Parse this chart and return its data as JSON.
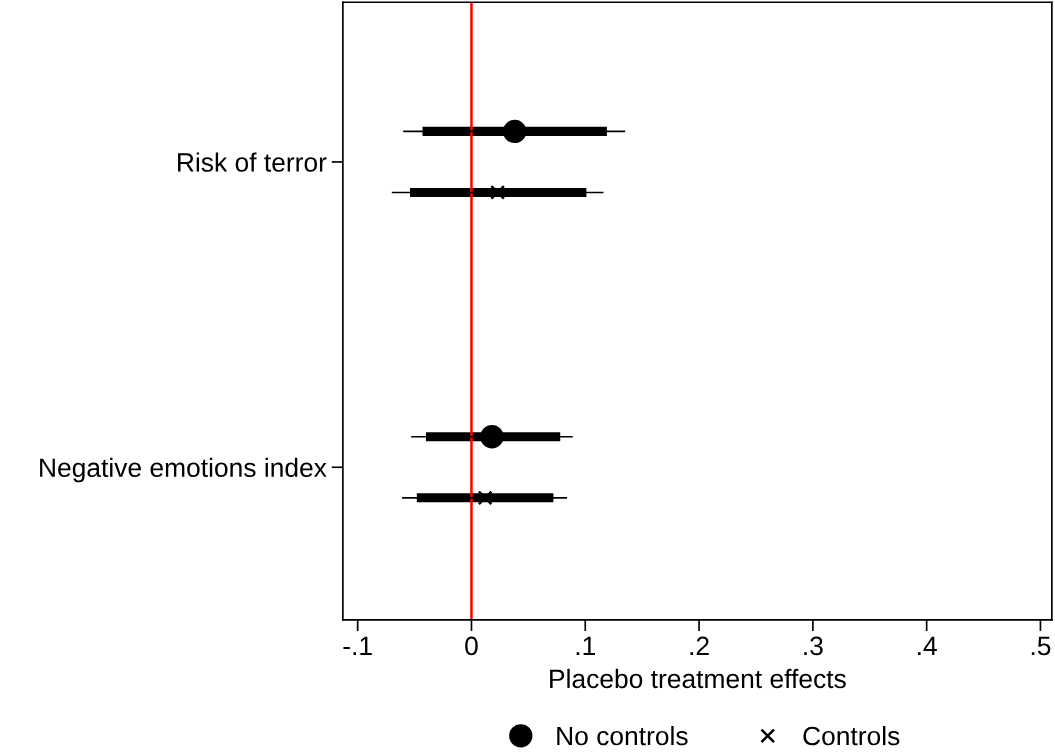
{
  "chart_data": {
    "type": "scatter",
    "orientation": "horizontal",
    "xlabel": "Placebo treatment effects",
    "categories": [
      "Risk of terror",
      "Negative emotions index"
    ],
    "series": [
      {
        "type": "bar",
        "color": "#000000",
        "base": [
          -0.043,
          -0.04
        ],
        "values": [
          0.162,
          0.118
        ]
      },
      {
        "type": "bar",
        "color": "#000000",
        "base": [
          -0.054,
          -0.048
        ],
        "values": [
          0.155,
          0.12
        ]
      },
      {
        "name": "No controls",
        "marker": "circle",
        "color": "#000000",
        "values": [
          0.038,
          0.018
        ],
        "errors": [
          [
            -0.06,
            0.135
          ],
          [
            -0.053,
            0.089
          ]
        ]
      },
      {
        "name": "Controls",
        "marker": "cross",
        "color": "#000000",
        "values": [
          0.023,
          0.012
        ],
        "errors": [
          [
            -0.07,
            0.116
          ],
          [
            -0.061,
            0.084
          ]
        ]
      }
    ],
    "xlim": [
      -0.113,
      0.51
    ],
    "xticks": [
      {
        "value": -0.1,
        "label": "-.1"
      },
      0,
      {
        "value": 0.1,
        "label": ".1"
      },
      {
        "value": 0.2,
        "label": ".2"
      },
      {
        "value": 0.3,
        "label": ".3"
      },
      {
        "value": 0.4,
        "label": ".4"
      },
      {
        "value": 0.5,
        "label": ".5"
      }
    ],
    "ref_lines": [
      {
        "axis": "x",
        "value": 0,
        "color": "#ff0000"
      }
    ],
    "grid": false,
    "legend": "bottom"
  }
}
